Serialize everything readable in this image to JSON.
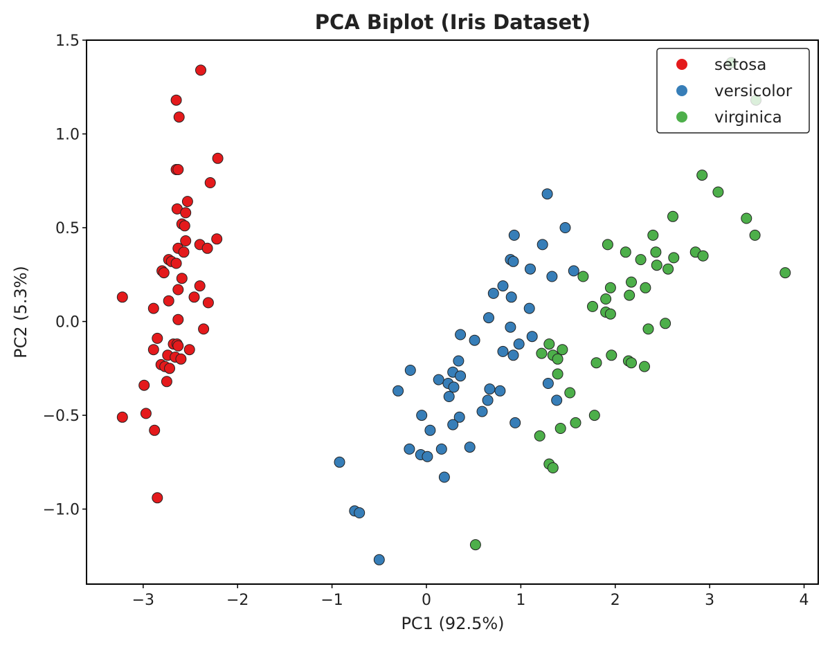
{
  "chart_data": {
    "type": "scatter",
    "title": "PCA Biplot (Iris Dataset)",
    "xlabel": "PC1 (92.5%)",
    "ylabel": "PC2 (5.3%)",
    "xlim": [
      -3.6,
      4.15
    ],
    "ylim": [
      -1.4,
      1.5
    ],
    "xticks": [
      -3,
      -2,
      -1,
      0,
      1,
      2,
      3,
      4
    ],
    "xtick_labels": [
      "−3",
      "−2",
      "−1",
      "0",
      "1",
      "2",
      "3",
      "4"
    ],
    "yticks": [
      -1.0,
      -0.5,
      0.0,
      0.5,
      1.0,
      1.5
    ],
    "ytick_labels": [
      "−1.0",
      "−0.5",
      "0.0",
      "0.5",
      "1.0",
      "1.5"
    ],
    "grid": false,
    "legend_position": "top-right",
    "series": [
      {
        "name": "setosa",
        "color": "#e41a1c",
        "points": [
          [
            -2.39,
            1.34
          ],
          [
            -2.65,
            1.18
          ],
          [
            -2.62,
            1.09
          ],
          [
            -2.65,
            0.81
          ],
          [
            -2.63,
            0.81
          ],
          [
            -2.21,
            0.87
          ],
          [
            -2.29,
            0.74
          ],
          [
            -2.53,
            0.64
          ],
          [
            -2.64,
            0.6
          ],
          [
            -2.55,
            0.58
          ],
          [
            -2.59,
            0.52
          ],
          [
            -2.56,
            0.51
          ],
          [
            -2.22,
            0.44
          ],
          [
            -2.55,
            0.43
          ],
          [
            -2.4,
            0.41
          ],
          [
            -2.32,
            0.39
          ],
          [
            -2.63,
            0.39
          ],
          [
            -2.57,
            0.37
          ],
          [
            -2.73,
            0.33
          ],
          [
            -2.7,
            0.32
          ],
          [
            -2.65,
            0.31
          ],
          [
            -2.8,
            0.27
          ],
          [
            -2.78,
            0.26
          ],
          [
            -2.59,
            0.23
          ],
          [
            -2.4,
            0.19
          ],
          [
            -2.63,
            0.17
          ],
          [
            -2.46,
            0.13
          ],
          [
            -3.22,
            0.13
          ],
          [
            -2.73,
            0.11
          ],
          [
            -2.31,
            0.1
          ],
          [
            -2.89,
            0.07
          ],
          [
            -2.63,
            0.01
          ],
          [
            -2.36,
            -0.04
          ],
          [
            -2.85,
            -0.09
          ],
          [
            -2.68,
            -0.12
          ],
          [
            -2.64,
            -0.12
          ],
          [
            -2.63,
            -0.13
          ],
          [
            -2.51,
            -0.15
          ],
          [
            -2.89,
            -0.15
          ],
          [
            -2.74,
            -0.18
          ],
          [
            -2.66,
            -0.19
          ],
          [
            -2.6,
            -0.2
          ],
          [
            -2.81,
            -0.23
          ],
          [
            -2.77,
            -0.24
          ],
          [
            -2.72,
            -0.25
          ],
          [
            -2.75,
            -0.32
          ],
          [
            -2.99,
            -0.34
          ],
          [
            -2.97,
            -0.49
          ],
          [
            -3.22,
            -0.51
          ],
          [
            -2.88,
            -0.58
          ],
          [
            -2.85,
            -0.94
          ]
        ]
      },
      {
        "name": "versicolor",
        "color": "#377eb8",
        "points": [
          [
            1.28,
            0.68
          ],
          [
            1.47,
            0.5
          ],
          [
            0.93,
            0.46
          ],
          [
            1.23,
            0.41
          ],
          [
            0.89,
            0.33
          ],
          [
            0.92,
            0.32
          ],
          [
            1.1,
            0.28
          ],
          [
            1.56,
            0.27
          ],
          [
            1.33,
            0.24
          ],
          [
            0.81,
            0.19
          ],
          [
            0.71,
            0.15
          ],
          [
            0.9,
            0.13
          ],
          [
            1.09,
            0.07
          ],
          [
            0.66,
            0.02
          ],
          [
            0.89,
            -0.03
          ],
          [
            0.36,
            -0.07
          ],
          [
            1.12,
            -0.08
          ],
          [
            0.51,
            -0.1
          ],
          [
            0.98,
            -0.12
          ],
          [
            0.81,
            -0.16
          ],
          [
            0.92,
            -0.18
          ],
          [
            0.34,
            -0.21
          ],
          [
            0.28,
            -0.27
          ],
          [
            -0.17,
            -0.26
          ],
          [
            0.13,
            -0.31
          ],
          [
            0.36,
            -0.29
          ],
          [
            0.23,
            -0.33
          ],
          [
            1.29,
            -0.33
          ],
          [
            0.29,
            -0.35
          ],
          [
            0.67,
            -0.36
          ],
          [
            -0.3,
            -0.37
          ],
          [
            0.78,
            -0.37
          ],
          [
            0.24,
            -0.4
          ],
          [
            0.65,
            -0.42
          ],
          [
            1.38,
            -0.42
          ],
          [
            0.59,
            -0.48
          ],
          [
            -0.05,
            -0.5
          ],
          [
            0.35,
            -0.51
          ],
          [
            0.28,
            -0.55
          ],
          [
            0.94,
            -0.54
          ],
          [
            0.04,
            -0.58
          ],
          [
            -0.18,
            -0.68
          ],
          [
            0.16,
            -0.68
          ],
          [
            0.46,
            -0.67
          ],
          [
            -0.06,
            -0.71
          ],
          [
            0.01,
            -0.72
          ],
          [
            -0.92,
            -0.75
          ],
          [
            0.19,
            -0.83
          ],
          [
            -0.76,
            -1.01
          ],
          [
            -0.71,
            -1.02
          ],
          [
            -0.5,
            -1.27
          ]
        ]
      },
      {
        "name": "virginica",
        "color": "#4daf4a",
        "points": [
          [
            3.23,
            1.38
          ],
          [
            3.49,
            1.18
          ],
          [
            2.92,
            0.78
          ],
          [
            3.09,
            0.69
          ],
          [
            2.61,
            0.56
          ],
          [
            3.39,
            0.55
          ],
          [
            2.4,
            0.46
          ],
          [
            3.48,
            0.46
          ],
          [
            1.92,
            0.41
          ],
          [
            2.43,
            0.37
          ],
          [
            2.11,
            0.37
          ],
          [
            2.85,
            0.37
          ],
          [
            2.93,
            0.35
          ],
          [
            2.62,
            0.34
          ],
          [
            2.27,
            0.33
          ],
          [
            2.44,
            0.3
          ],
          [
            2.56,
            0.28
          ],
          [
            3.8,
            0.26
          ],
          [
            1.66,
            0.24
          ],
          [
            2.17,
            0.21
          ],
          [
            1.95,
            0.18
          ],
          [
            2.32,
            0.18
          ],
          [
            2.15,
            0.14
          ],
          [
            1.9,
            0.12
          ],
          [
            1.76,
            0.08
          ],
          [
            1.9,
            0.05
          ],
          [
            1.95,
            0.04
          ],
          [
            2.53,
            -0.01
          ],
          [
            2.35,
            -0.04
          ],
          [
            1.3,
            -0.12
          ],
          [
            1.44,
            -0.15
          ],
          [
            1.22,
            -0.17
          ],
          [
            1.34,
            -0.18
          ],
          [
            1.96,
            -0.18
          ],
          [
            1.39,
            -0.2
          ],
          [
            2.14,
            -0.21
          ],
          [
            2.17,
            -0.22
          ],
          [
            1.8,
            -0.22
          ],
          [
            2.31,
            -0.24
          ],
          [
            1.39,
            -0.28
          ],
          [
            1.52,
            -0.38
          ],
          [
            1.78,
            -0.5
          ],
          [
            1.58,
            -0.54
          ],
          [
            1.42,
            -0.57
          ],
          [
            1.2,
            -0.61
          ],
          [
            1.3,
            -0.76
          ],
          [
            1.34,
            -0.78
          ],
          [
            0.52,
            -1.19
          ]
        ]
      }
    ]
  }
}
